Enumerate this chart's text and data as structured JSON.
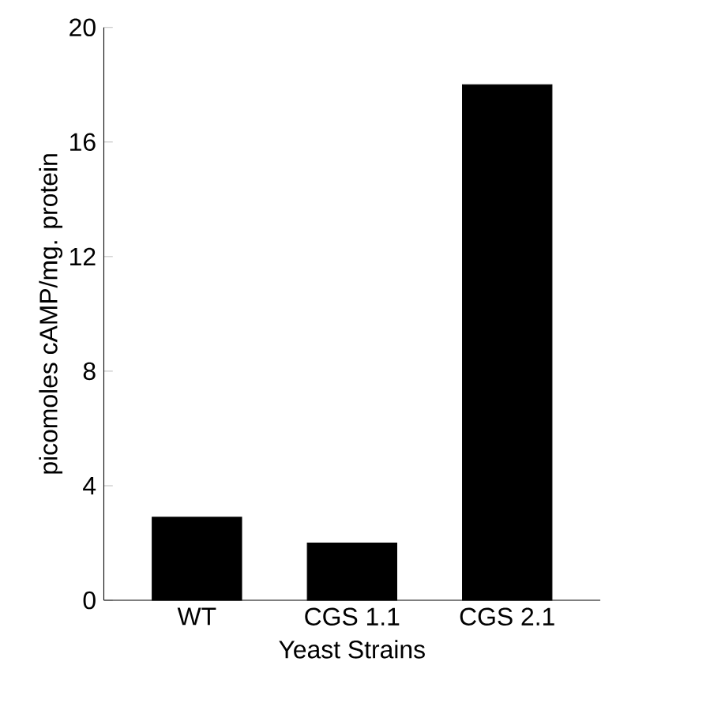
{
  "chart_data": {
    "type": "bar",
    "xlabel": "Yeast Strains",
    "ylabel": "picomoles cAMP/mg. protein",
    "categories": [
      "WT",
      "CGS 1.1",
      "CGS 2.1"
    ],
    "values": [
      2.9,
      2.0,
      18.0
    ],
    "color": "#000000",
    "ylim": [
      0,
      20
    ],
    "yticks": [
      0,
      4,
      8,
      12,
      16,
      20
    ],
    "grid": false
  }
}
